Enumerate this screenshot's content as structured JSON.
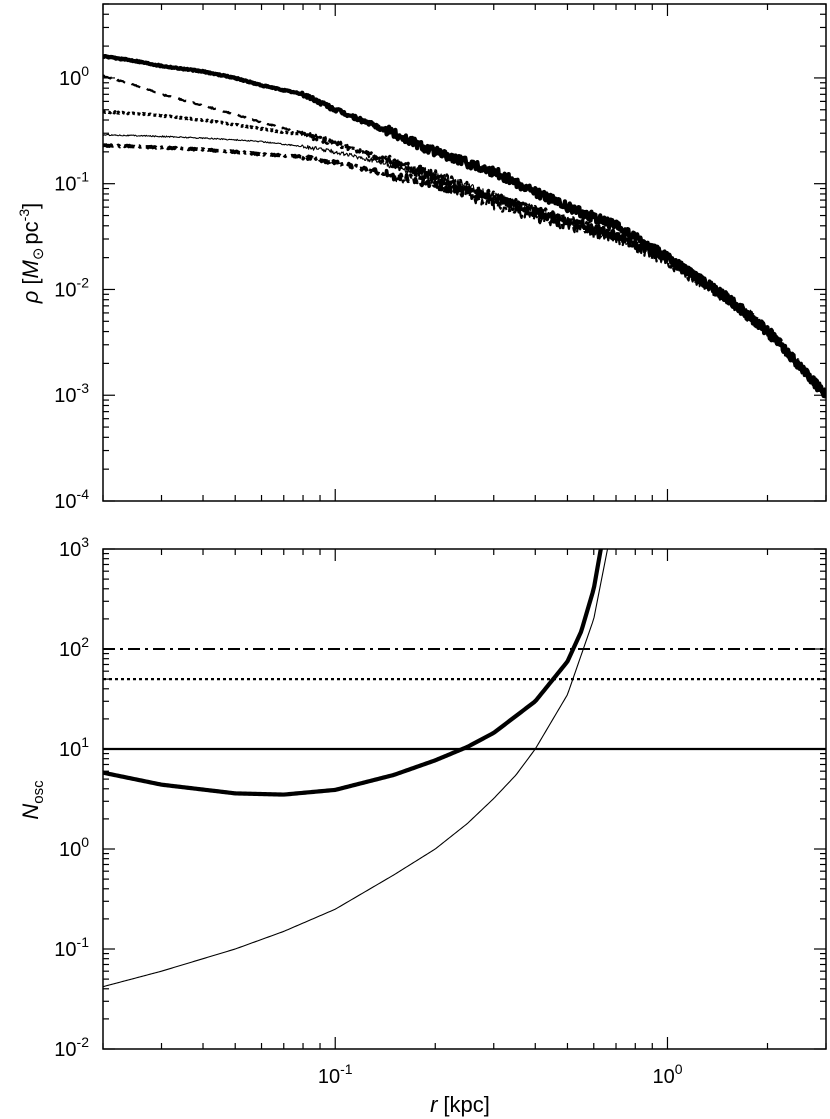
{
  "chart_data": [
    {
      "type": "line",
      "xscale": "log",
      "yscale": "log",
      "xlim": [
        0.02,
        3.0
      ],
      "ylim": [
        0.0001,
        5.0
      ],
      "xticks": [
        {
          "value": 0.1,
          "base": "10",
          "exp": "-1"
        },
        {
          "value": 1.0,
          "base": "10",
          "exp": "0"
        }
      ],
      "yticks": [
        {
          "value": 1,
          "base": "10",
          "exp": "0"
        },
        {
          "value": 0.1,
          "base": "10",
          "exp": "-1"
        },
        {
          "value": 0.01,
          "base": "10",
          "exp": "-2"
        },
        {
          "value": 0.001,
          "base": "10",
          "exp": "-3"
        },
        {
          "value": 0.0001,
          "base": "10",
          "exp": "-4"
        }
      ],
      "ylabel": {
        "rho": "ρ",
        "open": "[",
        "msun_M": "M",
        "pc": "pc",
        "exp": "-3",
        "close": "]"
      },
      "series": [
        {
          "style": "thick-solid",
          "x": [
            0.02,
            0.025,
            0.03,
            0.04,
            0.05,
            0.06,
            0.08,
            0.1,
            0.15,
            0.2,
            0.3,
            0.5,
            0.7,
            1.0,
            1.5,
            2.0,
            3.0
          ],
          "y": [
            1.6,
            1.45,
            1.3,
            1.15,
            1.0,
            0.85,
            0.7,
            0.5,
            0.3,
            0.2,
            0.13,
            0.06,
            0.04,
            0.02,
            0.0085,
            0.004,
            0.001
          ]
        },
        {
          "style": "dashed",
          "x": [
            0.02,
            0.025,
            0.03,
            0.04,
            0.05,
            0.06,
            0.08,
            0.1,
            0.15,
            0.2,
            0.3,
            0.5,
            0.7,
            1.0,
            1.5,
            2.0,
            3.0
          ],
          "y": [
            1.05,
            0.85,
            0.7,
            0.55,
            0.45,
            0.38,
            0.3,
            0.25,
            0.15,
            0.11,
            0.06,
            0.04,
            0.03,
            0.018,
            0.008,
            0.004,
            0.001
          ]
        },
        {
          "style": "dotted",
          "x": [
            0.02,
            0.025,
            0.03,
            0.04,
            0.05,
            0.06,
            0.08,
            0.1,
            0.15,
            0.2,
            0.3,
            0.5,
            0.7,
            1.0,
            1.5,
            2.0,
            3.0
          ],
          "y": [
            0.48,
            0.46,
            0.44,
            0.4,
            0.36,
            0.33,
            0.29,
            0.24,
            0.16,
            0.12,
            0.075,
            0.045,
            0.032,
            0.02,
            0.0085,
            0.0042,
            0.001
          ]
        },
        {
          "style": "thin-solid",
          "x": [
            0.02,
            0.025,
            0.03,
            0.04,
            0.05,
            0.06,
            0.08,
            0.1,
            0.15,
            0.2,
            0.3,
            0.5,
            0.7,
            1.0,
            1.5,
            2.0,
            3.0
          ],
          "y": [
            0.29,
            0.285,
            0.28,
            0.27,
            0.26,
            0.25,
            0.225,
            0.2,
            0.15,
            0.12,
            0.075,
            0.045,
            0.032,
            0.02,
            0.0085,
            0.0042,
            0.001
          ]
        },
        {
          "style": "dash-dot",
          "x": [
            0.02,
            0.025,
            0.03,
            0.04,
            0.05,
            0.06,
            0.08,
            0.1,
            0.15,
            0.2,
            0.3,
            0.5,
            0.7,
            1.0,
            1.5,
            2.0,
            3.0
          ],
          "y": [
            0.23,
            0.225,
            0.22,
            0.21,
            0.2,
            0.19,
            0.18,
            0.16,
            0.12,
            0.1,
            0.07,
            0.045,
            0.032,
            0.02,
            0.0085,
            0.0042,
            0.001
          ]
        }
      ]
    },
    {
      "type": "line",
      "xscale": "log",
      "yscale": "log",
      "xlim": [
        0.02,
        3.0
      ],
      "ylim": [
        0.01,
        1000
      ],
      "xticks": [
        {
          "value": 0.1,
          "base": "10",
          "exp": "-1"
        },
        {
          "value": 1.0,
          "base": "10",
          "exp": "0"
        }
      ],
      "yticks": [
        {
          "value": 1000,
          "base": "10",
          "exp": "3"
        },
        {
          "value": 100,
          "base": "10",
          "exp": "2"
        },
        {
          "value": 10,
          "base": "10",
          "exp": "1"
        },
        {
          "value": 1,
          "base": "10",
          "exp": "0"
        },
        {
          "value": 0.1,
          "base": "10",
          "exp": "-1"
        },
        {
          "value": 0.01,
          "base": "10",
          "exp": "-2"
        }
      ],
      "ylabel": {
        "main": "N",
        "sub": "osc"
      },
      "xlabel": {
        "var": "r",
        "unit": "[kpc]"
      },
      "series": [
        {
          "style": "thick-solid",
          "x": [
            0.02,
            0.03,
            0.05,
            0.07,
            0.1,
            0.15,
            0.2,
            0.25,
            0.3,
            0.4,
            0.5,
            0.55,
            0.6,
            0.63
          ],
          "y": [
            5.8,
            4.4,
            3.6,
            3.5,
            3.9,
            5.5,
            7.7,
            10.5,
            14.5,
            30,
            75,
            150,
            400,
            1000
          ]
        },
        {
          "style": "thin-solid",
          "x": [
            0.02,
            0.03,
            0.05,
            0.07,
            0.1,
            0.15,
            0.2,
            0.25,
            0.3,
            0.35,
            0.4,
            0.5,
            0.6,
            0.66
          ],
          "y": [
            0.042,
            0.06,
            0.1,
            0.15,
            0.25,
            0.55,
            1.0,
            1.8,
            3.2,
            5.5,
            10,
            35,
            200,
            1000
          ]
        },
        {
          "style": "hline-solid",
          "x": [
            0.02,
            3.0
          ],
          "y": [
            10,
            10
          ]
        },
        {
          "style": "hline-dotted",
          "x": [
            0.02,
            3.0
          ],
          "y": [
            50,
            50
          ]
        },
        {
          "style": "hline-dash-dot",
          "x": [
            0.02,
            3.0
          ],
          "y": [
            100,
            100
          ]
        }
      ]
    }
  ]
}
